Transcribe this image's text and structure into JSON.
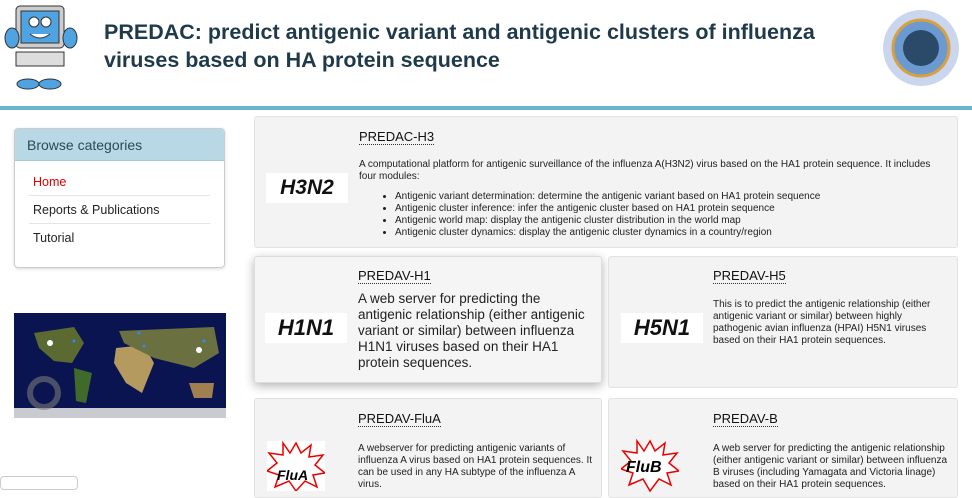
{
  "header": {
    "title": "PREDAC: predict antigenic variant and antigenic clusters of influenza viruses based on HA protein sequence",
    "mascot_icon": "computer-mascot-icon",
    "virus_icon": "influenza-virus-icon"
  },
  "sidebar": {
    "heading": "Browse categories",
    "items": [
      {
        "label": "Home",
        "active": true
      },
      {
        "label": "Reports & Publications"
      },
      {
        "label": "Tutorial"
      }
    ]
  },
  "colors": {
    "accent_bar": "#6cb4cc",
    "sidebar_head": "#b8d8e6",
    "active": "#dd0000"
  },
  "cards": [
    {
      "logo": "H3N2",
      "title": "PREDAC-H3",
      "desc": "A computational platform for antigenic surveillance of the influenza A(H3N2) virus based on the HA1 protein sequence. It includes four modules:",
      "modules": [
        "Antigenic variant determination: determine the antigenic variant based on HA1 protein sequence",
        "Antigenic cluster inference: infer the antigenic cluster based on HA1 protein sequence",
        "Antigenic world map: display the antigenic cluster distribution in the world map",
        "Antigenic cluster dynamics: display the antigenic cluster dynamics in a country/region"
      ]
    },
    {
      "logo": "H1N1",
      "title": "PREDAV-H1",
      "desc": "A web server for predicting the antigenic relationship (either antigenic variant or similar) between influenza H1N1 viruses based on their HA1 protein sequences."
    },
    {
      "logo": "H5N1",
      "title": "PREDAV-H5",
      "desc": "This is to predict the antigenic relationship (either antigenic variant or similar) between highly pathogenic avian influenza (HPAI) H5N1 viruses based on their HA1 protein sequences."
    },
    {
      "logo": "FluA",
      "title": "PREDAV-FluA",
      "desc": "A webserver for predicting antigenic variants of influenza A virus based on HA1 protein sequences. It can be used in any HA subtype of the influenza A virus."
    },
    {
      "logo": "FluB",
      "title": "PREDAV-B",
      "desc": "A web server for predicting the antigenic relationship (either antigenic variant or similar) between influenza B viruses (including Yamagata and Victoria linage) based on their HA1 protein sequences."
    }
  ]
}
